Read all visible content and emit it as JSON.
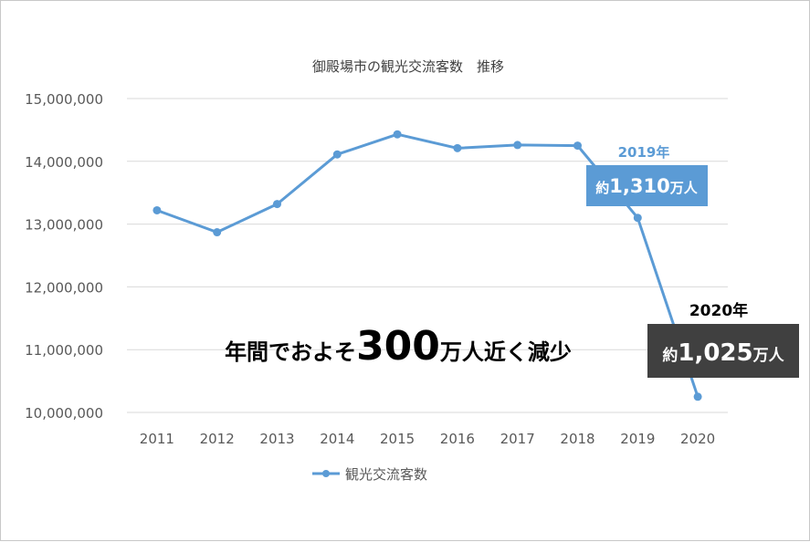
{
  "chart_data": {
    "type": "line",
    "title": "御殿場市の観光交流客数　推移",
    "xlabel": "",
    "ylabel": "",
    "categories": [
      "2011",
      "2012",
      "2013",
      "2014",
      "2015",
      "2016",
      "2017",
      "2018",
      "2019",
      "2020"
    ],
    "series": [
      {
        "name": "観光交流客数",
        "values": [
          13220000,
          12870000,
          13320000,
          14110000,
          14430000,
          14210000,
          14260000,
          14250000,
          13100000,
          10250000
        ]
      }
    ],
    "ylim": [
      10000000,
      15000000
    ],
    "yticks": [
      "10,000,000",
      "11,000,000",
      "12,000,000",
      "13,000,000",
      "14,000,000",
      "15,000,000"
    ],
    "grid": true,
    "legend": "bottom",
    "colors": {
      "line": "#5b9bd5",
      "grid": "#d9d9d9",
      "callout_2019": "#5b9bd5",
      "callout_2020": "#404040"
    },
    "annotations": {
      "year_2019": "2019年",
      "box_2019": {
        "prefix": "約",
        "number": "1,310",
        "suffix": "万人"
      },
      "year_2020": "2020年",
      "box_2020": {
        "prefix": "約",
        "number": "1,025",
        "suffix": "万人"
      },
      "headline": {
        "prefix": "年間でおよそ",
        "number": "300",
        "suffix": "万人近く減少"
      }
    }
  }
}
